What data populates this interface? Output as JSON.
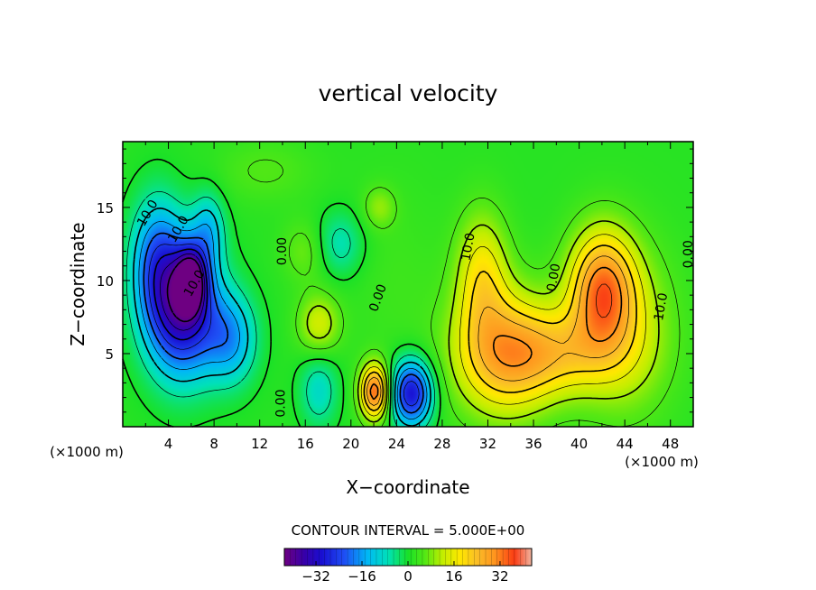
{
  "chart_data": {
    "type": "heatmap",
    "title": "vertical velocity",
    "xlabel": "X−coordinate",
    "ylabel": "Z−coordinate",
    "x_unit": "(×1000 m)",
    "z_unit": "(×1000 m)",
    "xlim": [
      0,
      50
    ],
    "ylim": [
      0,
      19.5
    ],
    "x_ticks": [
      4,
      8,
      12,
      16,
      20,
      24,
      28,
      32,
      36,
      40,
      44,
      48
    ],
    "y_ticks": [
      5,
      10,
      15
    ],
    "x_tick_labels": [
      "4",
      "8",
      "12",
      "16",
      "20",
      "24",
      "28",
      "32",
      "36",
      "40",
      "44",
      "48"
    ],
    "y_tick_labels": [
      "5",
      "10",
      "15"
    ],
    "contour_interval_text": "CONTOUR INTERVAL = 5.000E+00",
    "contour_interval": 5,
    "colorbar": {
      "range": [
        -43,
        43
      ],
      "ticks": [
        -32,
        -16,
        0,
        16,
        32
      ],
      "tick_labels": [
        "−32",
        "−16",
        "0",
        "16",
        "32"
      ]
    },
    "contour_labels": [
      {
        "text": "10.0",
        "x": 2.2,
        "z": 14.6,
        "angle": -60
      },
      {
        "text": "10.0",
        "x": 4.9,
        "z": 13.5,
        "angle": -60
      },
      {
        "text": "10.0",
        "x": 6.3,
        "z": 9.8,
        "angle": -60
      },
      {
        "text": "0.00",
        "x": 14.0,
        "z": 12.0,
        "angle": -90
      },
      {
        "text": "0.00",
        "x": 22.4,
        "z": 8.8,
        "angle": -70
      },
      {
        "text": "0.00",
        "x": 13.9,
        "z": 1.6,
        "angle": -90
      },
      {
        "text": "10.0",
        "x": 30.3,
        "z": 12.3,
        "angle": -80
      },
      {
        "text": "0.00",
        "x": 37.8,
        "z": 10.2,
        "angle": -80
      },
      {
        "text": "10.0",
        "x": 47.2,
        "z": 8.2,
        "angle": -80
      },
      {
        "text": "0.00",
        "x": 49.6,
        "z": 11.8,
        "angle": -90
      }
    ],
    "features": [
      {
        "x": 5.2,
        "z": 8.0,
        "w": -36,
        "sx": 2.2,
        "sz": 3.2
      },
      {
        "x": 6.0,
        "z": 10.0,
        "w": -30,
        "sx": 0.9,
        "sz": 1.5
      },
      {
        "x": 3.0,
        "z": 11.5,
        "w": -18,
        "sx": 1.6,
        "sz": 3.0
      },
      {
        "x": 9.5,
        "z": 6.0,
        "w": -16,
        "sx": 1.6,
        "sz": 2.2
      },
      {
        "x": 7.5,
        "z": 13.5,
        "w": -12,
        "sx": 1.0,
        "sz": 1.8
      },
      {
        "x": 25.3,
        "z": 2.3,
        "w": -32,
        "sx": 1.3,
        "sz": 1.6
      },
      {
        "x": 22.1,
        "z": 2.4,
        "w": 32,
        "sx": 0.9,
        "sz": 1.3
      },
      {
        "x": 17.2,
        "z": 2.5,
        "w": -10,
        "sx": 1.2,
        "sz": 1.8
      },
      {
        "x": 19.0,
        "z": 12.5,
        "w": -9,
        "sx": 1.5,
        "sz": 1.6
      },
      {
        "x": 22.5,
        "z": 15.0,
        "w": 7,
        "sx": 1.0,
        "sz": 1.0
      },
      {
        "x": 17.2,
        "z": 7.0,
        "w": 12,
        "sx": 1.3,
        "sz": 1.5
      },
      {
        "x": 16.0,
        "z": 12.0,
        "w": 6,
        "sx": 1.4,
        "sz": 1.5
      },
      {
        "x": 33.5,
        "z": 5.0,
        "w": 24,
        "sx": 3.2,
        "sz": 3.0
      },
      {
        "x": 31.5,
        "z": 10.5,
        "w": 15,
        "sx": 1.6,
        "sz": 3.0
      },
      {
        "x": 42.0,
        "z": 9.5,
        "w": 26,
        "sx": 2.0,
        "sz": 2.8
      },
      {
        "x": 38.5,
        "z": 5.0,
        "w": 13,
        "sx": 3.5,
        "sz": 2.0
      },
      {
        "x": 44.0,
        "z": 6.5,
        "w": 12,
        "sx": 3.0,
        "sz": 4.0
      },
      {
        "x": 12.5,
        "z": 17.5,
        "w": 4,
        "sx": 3.0,
        "sz": 1.5
      },
      {
        "x": 24.0,
        "z": 10.0,
        "w": 2,
        "sx": 3.0,
        "sz": 5.0
      }
    ]
  }
}
